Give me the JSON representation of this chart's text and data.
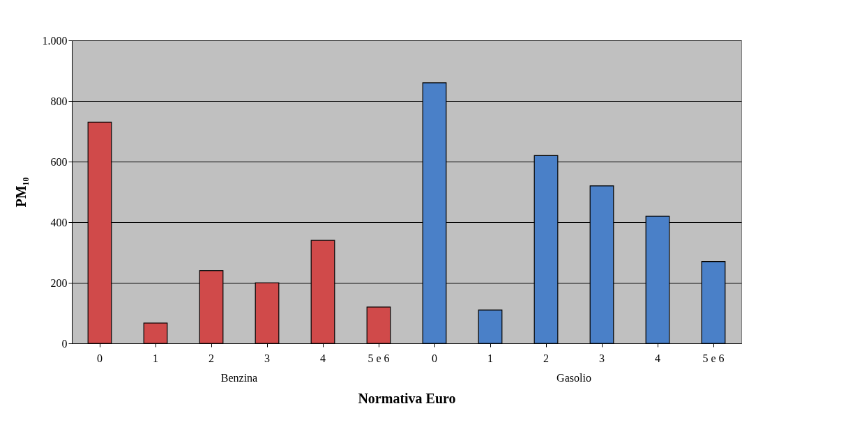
{
  "chart_data": {
    "type": "bar",
    "xlabel": "Normativa Euro",
    "ylabel": "PM₁₀",
    "categories": [
      "0",
      "1",
      "2",
      "3",
      "4",
      "5 e 6",
      "0",
      "1",
      "2",
      "3",
      "4",
      "5 e 6"
    ],
    "series": [
      {
        "name": "Benzina",
        "color": "#d04a4a",
        "values": [
          730,
          67,
          240,
          200,
          340,
          120,
          null,
          null,
          null,
          null,
          null,
          null
        ]
      },
      {
        "name": "Gasolio",
        "color": "#4a80c8",
        "values": [
          null,
          null,
          null,
          null,
          null,
          null,
          860,
          110,
          620,
          520,
          420,
          270
        ]
      }
    ],
    "ylim": [
      0,
      1000
    ],
    "yticks": [
      0,
      200,
      400,
      600,
      800,
      {
        "value": 1000,
        "label": "1.000"
      }
    ],
    "grid": "y",
    "legend": false
  }
}
